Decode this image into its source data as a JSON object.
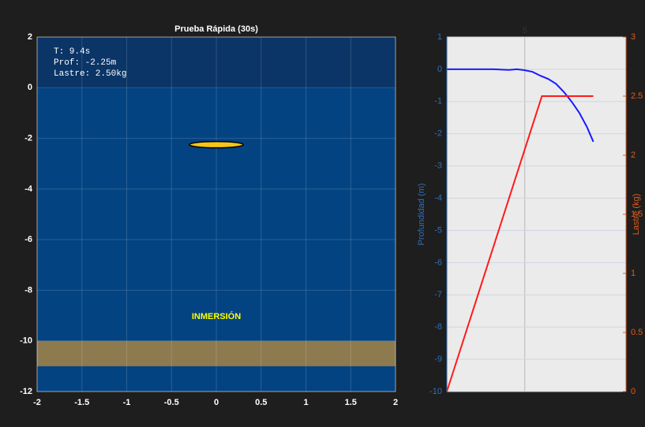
{
  "chart_data": [
    {
      "type": "scene",
      "title": "Prueba Rápida (30s)",
      "xlim": [
        -2,
        2
      ],
      "ylim": [
        -12,
        2
      ],
      "xticks": [
        -2,
        -1.5,
        -1,
        -0.5,
        0,
        0.5,
        1,
        1.5,
        2
      ],
      "yticks": [
        2,
        0,
        -2,
        -4,
        -6,
        -8,
        -10,
        -12
      ],
      "grid": true,
      "annotations": [
        "T: 9.4s",
        "Prof: -2.25m",
        "Lastre: 2.50kg",
        "INMERSIÓN"
      ],
      "surface_level": 0,
      "seabed": [
        -11,
        -10
      ],
      "boat": {
        "x": 0,
        "y": -2.25,
        "width": 0.6,
        "height": 0.25
      }
    },
    {
      "type": "line",
      "ylabel": "Profundidad (m)",
      "y2label": "Lastre (kg)",
      "xlim": [
        0,
        11.5
      ],
      "xticks": [
        5
      ],
      "ylim": [
        -10,
        1
      ],
      "yticks": [
        1,
        0,
        -1,
        -2,
        -3,
        -4,
        -5,
        -6,
        -7,
        -8,
        -9,
        -10
      ],
      "y2lim": [
        0,
        3
      ],
      "y2ticks": [
        3,
        2.5,
        2,
        1.5,
        1,
        0.5,
        0
      ],
      "grid": true,
      "series": [
        {
          "color": "#1a1aff",
          "x": [
            0,
            1,
            2,
            3,
            4,
            4.5,
            5,
            5.5,
            6,
            6.5,
            7,
            7.5,
            8,
            8.5,
            9,
            9.4
          ],
          "values": [
            0,
            0,
            0,
            0,
            -0.02,
            0,
            -0.03,
            -0.08,
            -0.2,
            -0.3,
            -0.45,
            -0.7,
            -1.0,
            -1.35,
            -1.8,
            -2.25
          ]
        },
        {
          "color": "#ff1a1a",
          "axis": "y2",
          "x": [
            0,
            6.1,
            9.4
          ],
          "values": [
            0,
            2.5,
            2.5
          ]
        }
      ]
    }
  ]
}
